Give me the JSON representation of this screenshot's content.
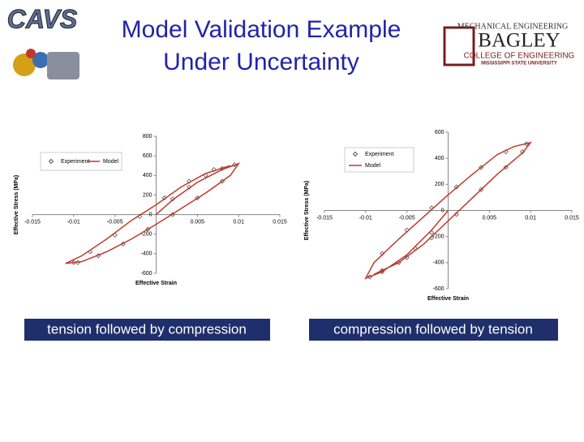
{
  "title": [
    "Model Validation Example",
    "Under Uncertainty"
  ],
  "logos": {
    "left": "CAVS",
    "right": [
      "MECHANICAL ENGINEERING",
      "BAGLEY",
      "COLLEGE OF ENGINEERING",
      "MISSISSIPPI STATE UNIVERSITY"
    ]
  },
  "captions": [
    "tension followed by compression",
    "compression followed by tension"
  ],
  "chart_data": [
    {
      "type": "line",
      "xlabel": "Effective Strain",
      "ylabel": "Effective Stress (MPa)",
      "xlim": [
        -0.015,
        0.015
      ],
      "xticks": [
        -0.015,
        -0.01,
        -0.005,
        0,
        0.005,
        0.01,
        0.015
      ],
      "ylim": [
        -600,
        800
      ],
      "yticks": [
        -600,
        -400,
        -200,
        0,
        200,
        400,
        600,
        800
      ],
      "legend": "upper left",
      "series": [
        {
          "name": "Experiment",
          "color": "#555555",
          "marker": "diamond",
          "x": [
            0.002,
            0.004,
            0.006,
            0.008,
            0.0095,
            0.008,
            0.005,
            0.002,
            -0.001,
            -0.004,
            -0.007,
            -0.0095,
            -0.01,
            -0.008,
            -0.005,
            -0.002,
            0.001,
            0.004,
            0.007
          ],
          "values": [
            160,
            280,
            400,
            470,
            510,
            340,
            170,
            0,
            -150,
            -300,
            -420,
            -490,
            -490,
            -380,
            -210,
            -20,
            170,
            340,
            460
          ]
        },
        {
          "name": "Model",
          "color": "#c0392b",
          "x": [
            0,
            0.002,
            0.005,
            0.008,
            0.01,
            0.009,
            0.006,
            0.003,
            0,
            -0.003,
            -0.006,
            -0.009,
            -0.011,
            -0.009,
            -0.006,
            -0.003,
            0,
            0.003,
            0.006,
            0.009
          ],
          "values": [
            0,
            150,
            330,
            460,
            520,
            400,
            220,
            60,
            -100,
            -250,
            -380,
            -480,
            -500,
            -420,
            -250,
            -60,
            100,
            280,
            420,
            500
          ]
        }
      ]
    },
    {
      "type": "line",
      "xlabel": "Effective Strain",
      "ylabel": "Effective Stress (MPa)",
      "xlim": [
        -0.015,
        0.015
      ],
      "xticks": [
        -0.015,
        -0.01,
        -0.005,
        0,
        0.005,
        0.01,
        0.015
      ],
      "ylim": [
        -600,
        600
      ],
      "yticks": [
        -600,
        -400,
        -200,
        0,
        200,
        400,
        600
      ],
      "legend": "upper left",
      "series": [
        {
          "name": "Experiment",
          "color": "#555555",
          "marker": "diamond",
          "x": [
            -0.002,
            -0.004,
            -0.006,
            -0.008,
            -0.0095,
            -0.008,
            -0.005,
            -0.002,
            0.001,
            0.004,
            0.007,
            0.0095,
            0.009,
            0.007,
            0.004,
            0.001,
            -0.002,
            -0.005,
            -0.008
          ],
          "values": [
            -170,
            -290,
            -400,
            -470,
            -510,
            -330,
            -150,
            20,
            180,
            330,
            450,
            510,
            450,
            330,
            160,
            -30,
            -210,
            -360,
            -460
          ]
        },
        {
          "name": "Model",
          "color": "#c0392b",
          "x": [
            0,
            -0.002,
            -0.005,
            -0.008,
            -0.01,
            -0.009,
            -0.006,
            -0.003,
            0,
            0.003,
            0.006,
            0.008,
            0.01,
            0.009,
            0.006,
            0.003,
            0,
            -0.003,
            -0.006,
            -0.009
          ],
          "values": [
            0,
            -150,
            -340,
            -470,
            -520,
            -400,
            -220,
            -50,
            120,
            280,
            430,
            490,
            520,
            440,
            280,
            100,
            -80,
            -260,
            -400,
            -490
          ]
        }
      ]
    }
  ]
}
